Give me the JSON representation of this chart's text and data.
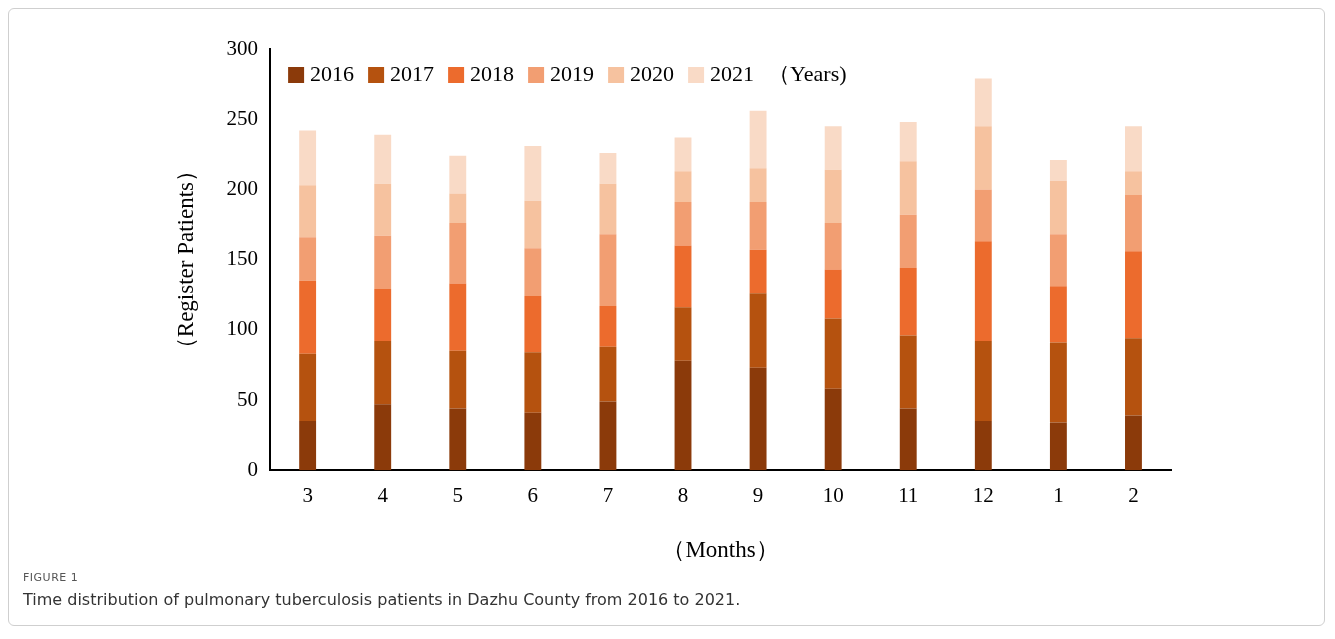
{
  "chart_data": {
    "type": "bar",
    "stacked": true,
    "xlabel": "（Months）",
    "ylabel": "（Register Patients）",
    "legend_title": "（Years)",
    "categories": [
      "3",
      "4",
      "5",
      "6",
      "7",
      "8",
      "9",
      "10",
      "11",
      "12",
      "1",
      "2"
    ],
    "series": [
      {
        "name": "2016",
        "color": "#8b3a0a",
        "values": [
          35,
          47,
          44,
          41,
          49,
          78,
          73,
          58,
          44,
          35,
          34,
          39
        ]
      },
      {
        "name": "2017",
        "color": "#b5520f",
        "values": [
          48,
          45,
          41,
          43,
          39,
          38,
          53,
          50,
          52,
          57,
          57,
          55
        ]
      },
      {
        "name": "2018",
        "color": "#ec6b2d",
        "values": [
          52,
          37,
          48,
          40,
          29,
          44,
          31,
          35,
          48,
          71,
          40,
          62
        ]
      },
      {
        "name": "2019",
        "color": "#f29e72",
        "values": [
          31,
          38,
          43,
          34,
          51,
          31,
          34,
          33,
          38,
          37,
          37,
          40
        ]
      },
      {
        "name": "2020",
        "color": "#f6c29f",
        "values": [
          37,
          37,
          21,
          34,
          36,
          22,
          24,
          38,
          38,
          45,
          38,
          17
        ]
      },
      {
        "name": "2021",
        "color": "#f9dac6",
        "values": [
          39,
          35,
          27,
          39,
          22,
          24,
          41,
          31,
          28,
          34,
          15,
          32
        ]
      }
    ],
    "ylim": [
      0,
      300
    ],
    "yticks": [
      0,
      50,
      100,
      150,
      200,
      250,
      300
    ],
    "grid": false,
    "legend": "top left",
    "annotations": [
      "FIGURE 1",
      "Time distribution of pulmonary tuberculosis patients in Dazhu County from 2016 to 2021."
    ]
  }
}
